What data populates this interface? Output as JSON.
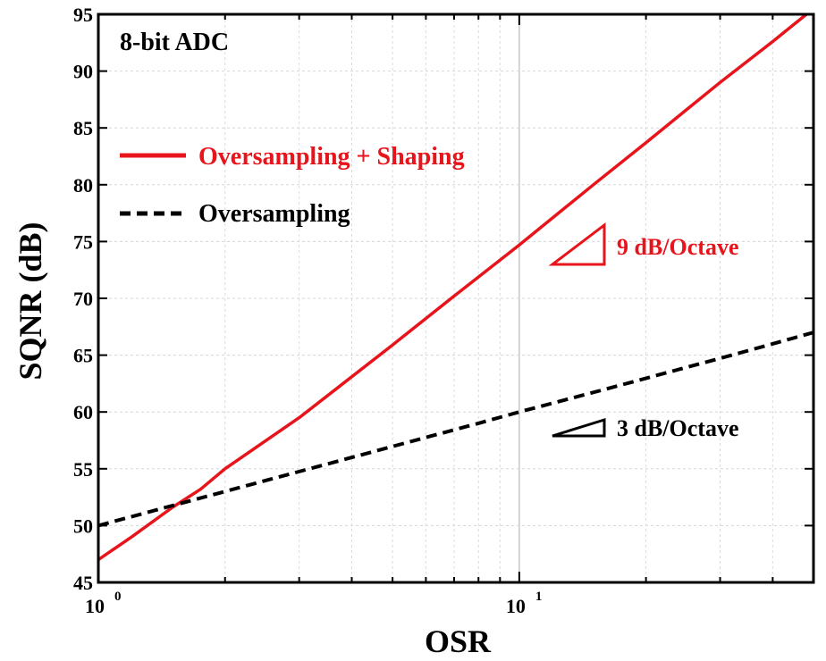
{
  "chart_data": {
    "type": "line",
    "title": "8-bit ADC",
    "xlabel": "OSR",
    "ylabel": "SQNR (dB)",
    "x_scale": "log",
    "xlim": [
      1,
      50
    ],
    "ylim": [
      45,
      95
    ],
    "yticks": [
      45,
      50,
      55,
      60,
      65,
      70,
      75,
      80,
      85,
      90,
      95
    ],
    "xtick_labels": [
      {
        "value": 1,
        "base": "10",
        "exp": "0"
      },
      {
        "value": 10,
        "base": "10",
        "exp": "1"
      }
    ],
    "grid": true,
    "legend_position": "upper-left",
    "series": [
      {
        "name": "Oversampling + Shaping",
        "color": "#e8141b",
        "style": "solid",
        "x": [
          1,
          1.2,
          1.5,
          1.75,
          2,
          3,
          5,
          7,
          10,
          15,
          20,
          30,
          40,
          50
        ],
        "y": [
          47.0,
          49.0,
          51.6,
          53.2,
          55.0,
          59.5,
          65.9,
          70.2,
          74.7,
          80.0,
          83.7,
          89.0,
          92.6,
          95.5
        ]
      },
      {
        "name": "Oversampling",
        "color": "#000000",
        "style": "dashed",
        "x": [
          1,
          2,
          4,
          8,
          10,
          16,
          32,
          50
        ],
        "y": [
          50.0,
          53.0,
          56.0,
          59.0,
          60.0,
          62.0,
          65.0,
          67.0
        ]
      }
    ],
    "annotations": [
      {
        "text": "9 dB/Octave",
        "color": "#e8141b"
      },
      {
        "text": "3 dB/Octave",
        "color": "#000000"
      }
    ]
  }
}
